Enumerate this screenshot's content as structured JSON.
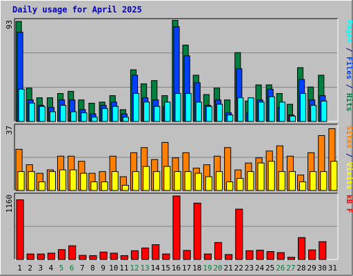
{
  "title": "Daily usage for April 2025",
  "colors": {
    "background": "#c0c0c0",
    "plot_bg": "#c0c0c0",
    "pages": "#00ffff",
    "files": "#0040ff",
    "hits": "#008040",
    "sites": "#ff8000",
    "visits": "#ffff00",
    "kbf": "#ff0000",
    "weekend_label": "#008040",
    "day_label": "#000080"
  },
  "chart_data": [
    {
      "type": "bar",
      "panel": "hits-files-pages",
      "ylim": [
        0,
        93
      ],
      "y_tick_label": "93",
      "right_label": [
        {
          "text": "Pages",
          "color_key": "pages"
        },
        {
          "text": " / ",
          "color_key": "day_label"
        },
        {
          "text": "Files",
          "color_key": "files"
        },
        {
          "text": " / ",
          "color_key": "day_label"
        },
        {
          "text": "Hits",
          "color_key": "hits"
        }
      ],
      "categories": [
        "1",
        "2",
        "3",
        "4",
        "5",
        "6",
        "7",
        "8",
        "9",
        "10",
        "11",
        "12",
        "13",
        "14",
        "15",
        "16",
        "17",
        "18",
        "19",
        "20",
        "21",
        "22",
        "23",
        "24",
        "25",
        "26",
        "27",
        "28",
        "29",
        "30",
        "31"
      ],
      "series": [
        {
          "name": "Hits",
          "color_key": "hits",
          "values": [
            93,
            31,
            22,
            22,
            26,
            28,
            20,
            17,
            18,
            24,
            11,
            48,
            35,
            38,
            24,
            94,
            71,
            43,
            25,
            31,
            20,
            64,
            19,
            34,
            34,
            26,
            16,
            50,
            32,
            43,
            0
          ]
        },
        {
          "name": "Files",
          "color_key": "files",
          "values": [
            83,
            20,
            15,
            13,
            20,
            20,
            11,
            7,
            15,
            18,
            7,
            43,
            22,
            20,
            14,
            88,
            61,
            36,
            15,
            20,
            8,
            49,
            8,
            20,
            30,
            13,
            6,
            39,
            20,
            24,
            0
          ]
        },
        {
          "name": "Pages",
          "color_key": "pages",
          "values": [
            30,
            17,
            14,
            9,
            15,
            9,
            8,
            4,
            12,
            14,
            4,
            26,
            18,
            14,
            18,
            26,
            26,
            18,
            14,
            16,
            6,
            22,
            22,
            18,
            23,
            18,
            5,
            26,
            15,
            19,
            0
          ]
        }
      ]
    },
    {
      "type": "bar",
      "panel": "visits-sites",
      "ylim": [
        0,
        37
      ],
      "y_tick_label": "37",
      "right_label": [
        {
          "text": "Sites",
          "color_key": "sites"
        },
        {
          "text": " / ",
          "color_key": "day_label"
        },
        {
          "text": "Visits",
          "color_key": "visits"
        }
      ],
      "categories": [
        "1",
        "2",
        "3",
        "4",
        "5",
        "6",
        "7",
        "8",
        "9",
        "10",
        "11",
        "12",
        "13",
        "14",
        "15",
        "16",
        "17",
        "18",
        "19",
        "20",
        "21",
        "22",
        "23",
        "24",
        "25",
        "26",
        "27",
        "28",
        "29",
        "30",
        "31"
      ],
      "series": [
        {
          "name": "Sites",
          "color_key": "sites",
          "values": [
            24,
            15,
            10,
            12,
            20,
            20,
            17,
            10,
            11,
            20,
            8,
            22,
            25,
            18,
            28,
            19,
            22,
            13,
            15,
            20,
            25,
            12,
            16,
            19,
            23,
            26,
            20,
            9,
            22,
            32,
            36
          ]
        },
        {
          "name": "Visits",
          "color_key": "visits",
          "values": [
            11,
            11,
            5,
            11,
            12,
            12,
            10,
            5,
            5,
            11,
            3,
            11,
            14,
            11,
            14,
            11,
            11,
            10,
            8,
            11,
            5,
            7,
            11,
            16,
            17,
            11,
            11,
            5,
            11,
            11,
            17
          ]
        }
      ]
    },
    {
      "type": "bar",
      "panel": "kbf",
      "ylim": [
        0,
        1160
      ],
      "y_tick_label": "1160",
      "right_label": [
        {
          "text": "kB F",
          "color_key": "kbf"
        }
      ],
      "categories": [
        "1",
        "2",
        "3",
        "4",
        "5",
        "6",
        "7",
        "8",
        "9",
        "10",
        "11",
        "12",
        "13",
        "14",
        "15",
        "16",
        "17",
        "18",
        "19",
        "20",
        "21",
        "22",
        "23",
        "24",
        "25",
        "26",
        "27",
        "28",
        "29",
        "30",
        "31"
      ],
      "series": [
        {
          "name": "kB F",
          "color_key": "kbf",
          "values": [
            1090,
            100,
            100,
            115,
            180,
            250,
            75,
            70,
            135,
            115,
            70,
            160,
            210,
            270,
            100,
            1160,
            165,
            1030,
            100,
            310,
            90,
            920,
            160,
            170,
            145,
            125,
            40,
            400,
            175,
            325,
            0
          ]
        }
      ]
    }
  ],
  "weekend_days": [
    "5",
    "6",
    "12",
    "13",
    "19",
    "20",
    "26",
    "27"
  ]
}
